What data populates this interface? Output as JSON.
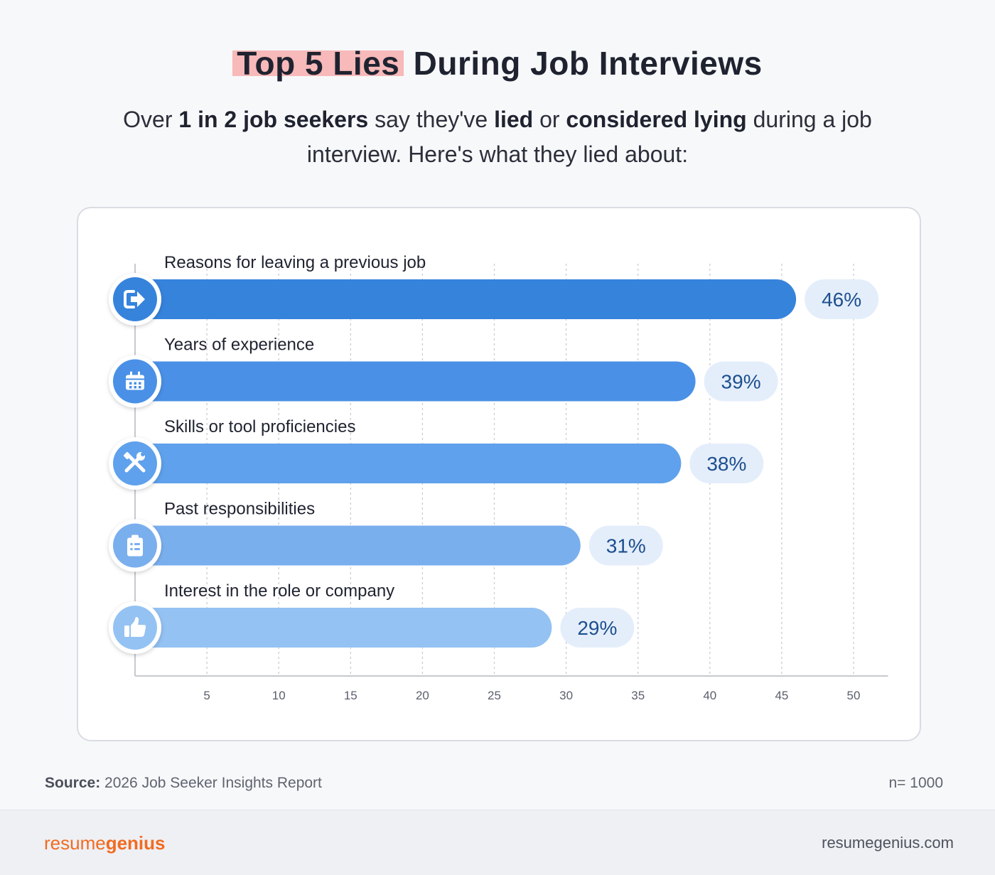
{
  "header": {
    "title_highlight": "Top 5 Lies",
    "title_rest": " During Job Interviews",
    "subtitle": {
      "p1": "Over ",
      "b1": "1 in 2 job seekers",
      "p2": " say they've ",
      "b2": "lied",
      "p3": " or ",
      "b3": "considered lying",
      "p4": " during a job interview. Here's what they lied about:"
    }
  },
  "chart_data": {
    "type": "bar",
    "orientation": "horizontal",
    "categories": [
      "Reasons for leaving a previous job",
      "Years of experience",
      "Skills or tool proficiencies",
      "Past responsibilities",
      "Interest in the role or company"
    ],
    "values": [
      46,
      39,
      38,
      31,
      29
    ],
    "value_labels": [
      "46%",
      "39%",
      "38%",
      "31%",
      "29%"
    ],
    "icons": [
      "sign-out-icon",
      "calendar-icon",
      "tools-icon",
      "clipboard-list-icon",
      "thumbs-up-icon"
    ],
    "colors": [
      "#3683dc",
      "#4a90e6",
      "#5fa1ec",
      "#7aafee",
      "#94c2f3"
    ],
    "xlim": [
      0,
      52
    ],
    "xticks": [
      5,
      10,
      15,
      20,
      25,
      30,
      35,
      40,
      45,
      50
    ],
    "grid": true,
    "label_bg": "#e4eefb",
    "label_color": "#1d4f8f"
  },
  "source": {
    "label": "Source:",
    "text": " 2026 Job Seeker Insights Report"
  },
  "sample": "n= 1000",
  "footer": {
    "logo_light": "resume",
    "logo_bold": "genius",
    "website": "resumegenius.com"
  }
}
